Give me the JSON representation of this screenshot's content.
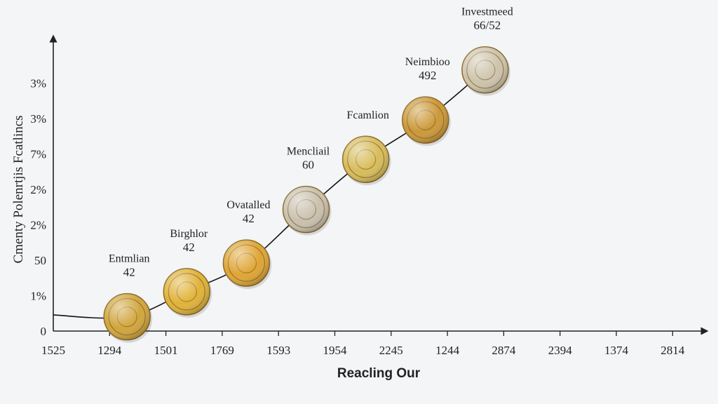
{
  "chart_data": {
    "type": "scatter",
    "title": "",
    "xlabel": "Reacling Our",
    "ylabel": "Cmenty Polenrtjis Fcatlincs",
    "x_ticks": [
      "1525",
      "1294",
      "1501",
      "1769",
      "1593",
      "1954",
      "2245",
      "1244",
      "2874",
      "2394",
      "1374",
      "2814"
    ],
    "y_ticks": [
      "0",
      "1%",
      "50",
      "2%",
      "2%",
      "7%",
      "3%",
      "3%"
    ],
    "series": [
      {
        "points": [
          {
            "x": 1,
            "y": 0.4,
            "label": "Entmlian",
            "value": "42",
            "color": "#d1a53c"
          },
          {
            "x": 2,
            "y": 1.1,
            "label": "Birghlor",
            "value": "42",
            "color": "#e0b238"
          },
          {
            "x": 3,
            "y": 1.9,
            "label": "Ovatalled",
            "value": "42",
            "color": "#dfa534"
          },
          {
            "x": 4,
            "y": 3.4,
            "label": "Mencliail",
            "value": "60",
            "color": "#c9c0ae"
          },
          {
            "x": 5,
            "y": 4.8,
            "label": "Fcamlion",
            "value": "",
            "color": "#d8bc5a"
          },
          {
            "x": 6,
            "y": 5.9,
            "label": "Neimbioo",
            "value": "492",
            "color": "#cc9838"
          },
          {
            "x": 7,
            "y": 7.3,
            "label": "Investmeed",
            "value": "66/52",
            "color": "#cec4ac"
          }
        ]
      }
    ],
    "grid": false,
    "legend": "none"
  }
}
